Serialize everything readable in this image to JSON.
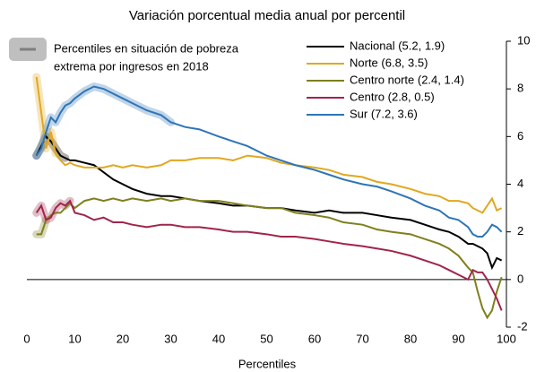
{
  "chart_data": {
    "type": "line",
    "title": "Variación porcentual media anual por percentil",
    "x_label": "Percentiles",
    "highlight_legend": [
      "Percentiles  en situación de pobreza",
      "extrema  por ingresos en 2018"
    ],
    "highlight_color": "#bfbfbf",
    "x": [
      2,
      3,
      4,
      5,
      6,
      7,
      8,
      9,
      10,
      12,
      14,
      16,
      18,
      20,
      22,
      25,
      28,
      30,
      33,
      36,
      40,
      43,
      46,
      50,
      53,
      56,
      60,
      63,
      66,
      70,
      73,
      76,
      80,
      83,
      86,
      88,
      90,
      92,
      93,
      94,
      95,
      96,
      97,
      98,
      99
    ],
    "series": [
      {
        "name": "Nacional (5.2, 1.9)",
        "color": "#000000",
        "highlight_max_x": 8,
        "values": [
          5.2,
          5.6,
          6.0,
          5.8,
          5.5,
          5.2,
          5.1,
          5.0,
          5.0,
          4.9,
          4.8,
          4.5,
          4.2,
          4.0,
          3.8,
          3.6,
          3.5,
          3.5,
          3.4,
          3.3,
          3.2,
          3.1,
          3.1,
          3.0,
          3.0,
          2.9,
          2.8,
          2.9,
          2.8,
          2.8,
          2.7,
          2.6,
          2.5,
          2.3,
          2.1,
          2.0,
          1.8,
          1.5,
          1.5,
          1.4,
          1.3,
          1.1,
          0.5,
          0.9,
          0.8
        ]
      },
      {
        "name": "Norte (6.8, 3.5)",
        "color": "#e0a820",
        "highlight_max_x": 6,
        "values": [
          8.5,
          7.0,
          5.5,
          6.2,
          5.3,
          5.0,
          4.8,
          4.9,
          4.8,
          4.7,
          4.7,
          4.7,
          4.8,
          4.7,
          4.8,
          4.7,
          4.8,
          5.0,
          5.0,
          5.1,
          5.1,
          5.0,
          5.2,
          5.1,
          4.9,
          4.8,
          4.7,
          4.6,
          4.4,
          4.3,
          4.1,
          4.0,
          3.8,
          3.6,
          3.5,
          3.3,
          3.3,
          3.2,
          3.0,
          2.9,
          2.8,
          3.1,
          3.4,
          2.9,
          3.0
        ]
      },
      {
        "name": "Centro norte (2.4, 1.4)",
        "color": "#7f7f1f",
        "highlight_max_x": 4,
        "values": [
          1.9,
          1.9,
          2.5,
          2.7,
          2.8,
          2.8,
          3.0,
          3.2,
          3.0,
          3.3,
          3.4,
          3.3,
          3.4,
          3.3,
          3.4,
          3.3,
          3.4,
          3.3,
          3.4,
          3.3,
          3.3,
          3.2,
          3.1,
          3.0,
          3.0,
          2.8,
          2.7,
          2.6,
          2.4,
          2.3,
          2.1,
          2.0,
          1.9,
          1.7,
          1.5,
          1.3,
          1.0,
          0.5,
          0.3,
          -0.5,
          -1.2,
          -1.6,
          -1.3,
          -0.5,
          0.1
        ]
      },
      {
        "name": "Centro (2.8, 0.5)",
        "color": "#a0254a",
        "highlight_max_x": 9,
        "values": [
          2.8,
          3.1,
          2.5,
          2.6,
          3.0,
          3.2,
          3.1,
          3.3,
          2.8,
          2.7,
          2.5,
          2.6,
          2.4,
          2.4,
          2.3,
          2.2,
          2.3,
          2.3,
          2.2,
          2.2,
          2.1,
          2.0,
          2.0,
          1.9,
          1.8,
          1.8,
          1.7,
          1.6,
          1.5,
          1.4,
          1.3,
          1.2,
          1.0,
          0.8,
          0.6,
          0.4,
          0.2,
          0.0,
          0.4,
          0.3,
          0.3,
          0.0,
          -0.4,
          -0.8,
          -1.3
        ]
      },
      {
        "name": "Sur (7.2, 3.6)",
        "color": "#2e75b6",
        "highlight_max_x": 30,
        "values": [
          5.2,
          5.5,
          6.2,
          6.8,
          6.6,
          7.0,
          7.3,
          7.4,
          7.6,
          7.9,
          8.1,
          8.0,
          7.8,
          7.6,
          7.4,
          7.1,
          6.9,
          6.6,
          6.4,
          6.3,
          6.0,
          5.8,
          5.6,
          5.2,
          5.0,
          4.8,
          4.6,
          4.4,
          4.2,
          4.0,
          3.9,
          3.7,
          3.4,
          3.1,
          2.9,
          2.6,
          2.5,
          2.2,
          1.9,
          1.8,
          1.8,
          2.0,
          2.3,
          2.2,
          2.0
        ]
      }
    ],
    "xlim": [
      0,
      100
    ],
    "xticks": [
      0,
      10,
      20,
      30,
      40,
      50,
      60,
      70,
      80,
      90,
      100
    ],
    "ylim": [
      -2,
      10
    ],
    "yticks": [
      -2,
      0,
      2,
      4,
      6,
      8,
      10
    ]
  }
}
